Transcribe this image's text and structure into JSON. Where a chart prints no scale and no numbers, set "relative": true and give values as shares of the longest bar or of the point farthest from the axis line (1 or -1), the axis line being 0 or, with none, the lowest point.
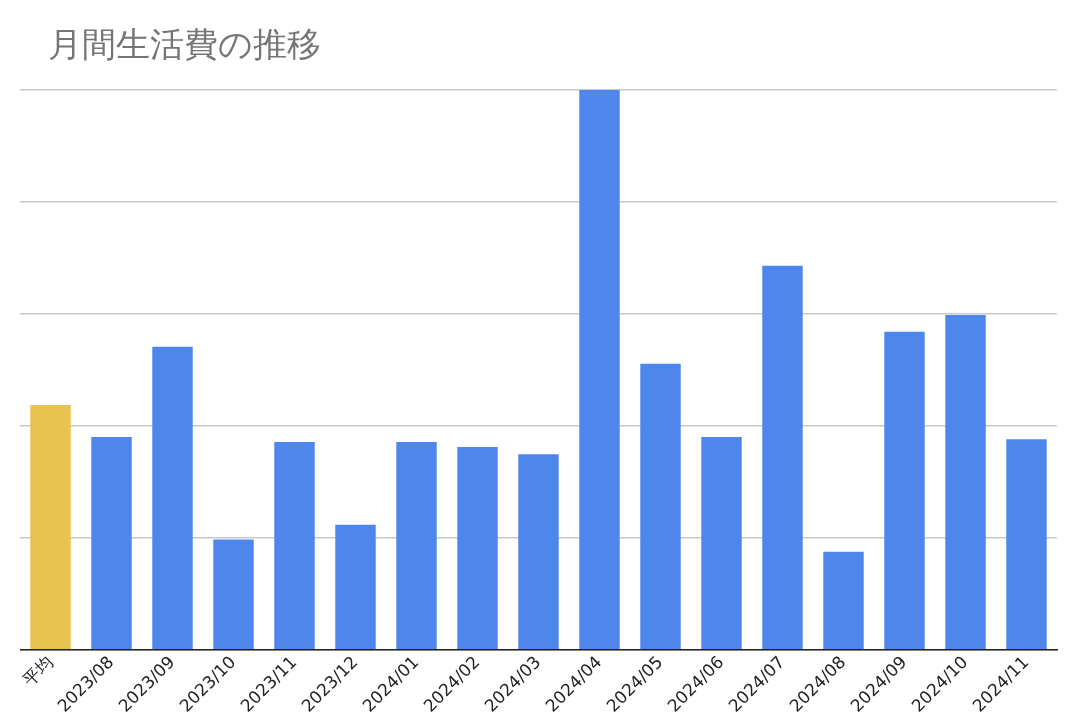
{
  "chart_data": {
    "type": "bar",
    "title": "月間生活費の推移",
    "relative": true,
    "grid": "y",
    "legend": false,
    "categories": [
      "平均",
      "2023/08",
      "2023/09",
      "2023/10",
      "2023/11",
      "2023/12",
      "2024/01",
      "2024/02",
      "2024/03",
      "2024/04",
      "2024/05",
      "2024/06",
      "2024/07",
      "2024/08",
      "2024/09",
      "2024/10",
      "2024/11"
    ],
    "values": [
      0.437,
      0.38,
      0.541,
      0.197,
      0.371,
      0.223,
      0.371,
      0.362,
      0.349,
      1,
      0.511,
      0.38,
      0.686,
      0.175,
      0.568,
      0.598,
      0.376
    ],
    "colors": [
      "#e9c34f",
      "#4f86ec",
      "#4f86ec",
      "#4f86ec",
      "#4f86ec",
      "#4f86ec",
      "#4f86ec",
      "#4f86ec",
      "#4f86ec",
      "#4f86ec",
      "#4f86ec",
      "#4f86ec",
      "#4f86ec",
      "#4f86ec",
      "#4f86ec",
      "#4f86ec",
      "#4f86ec"
    ]
  }
}
